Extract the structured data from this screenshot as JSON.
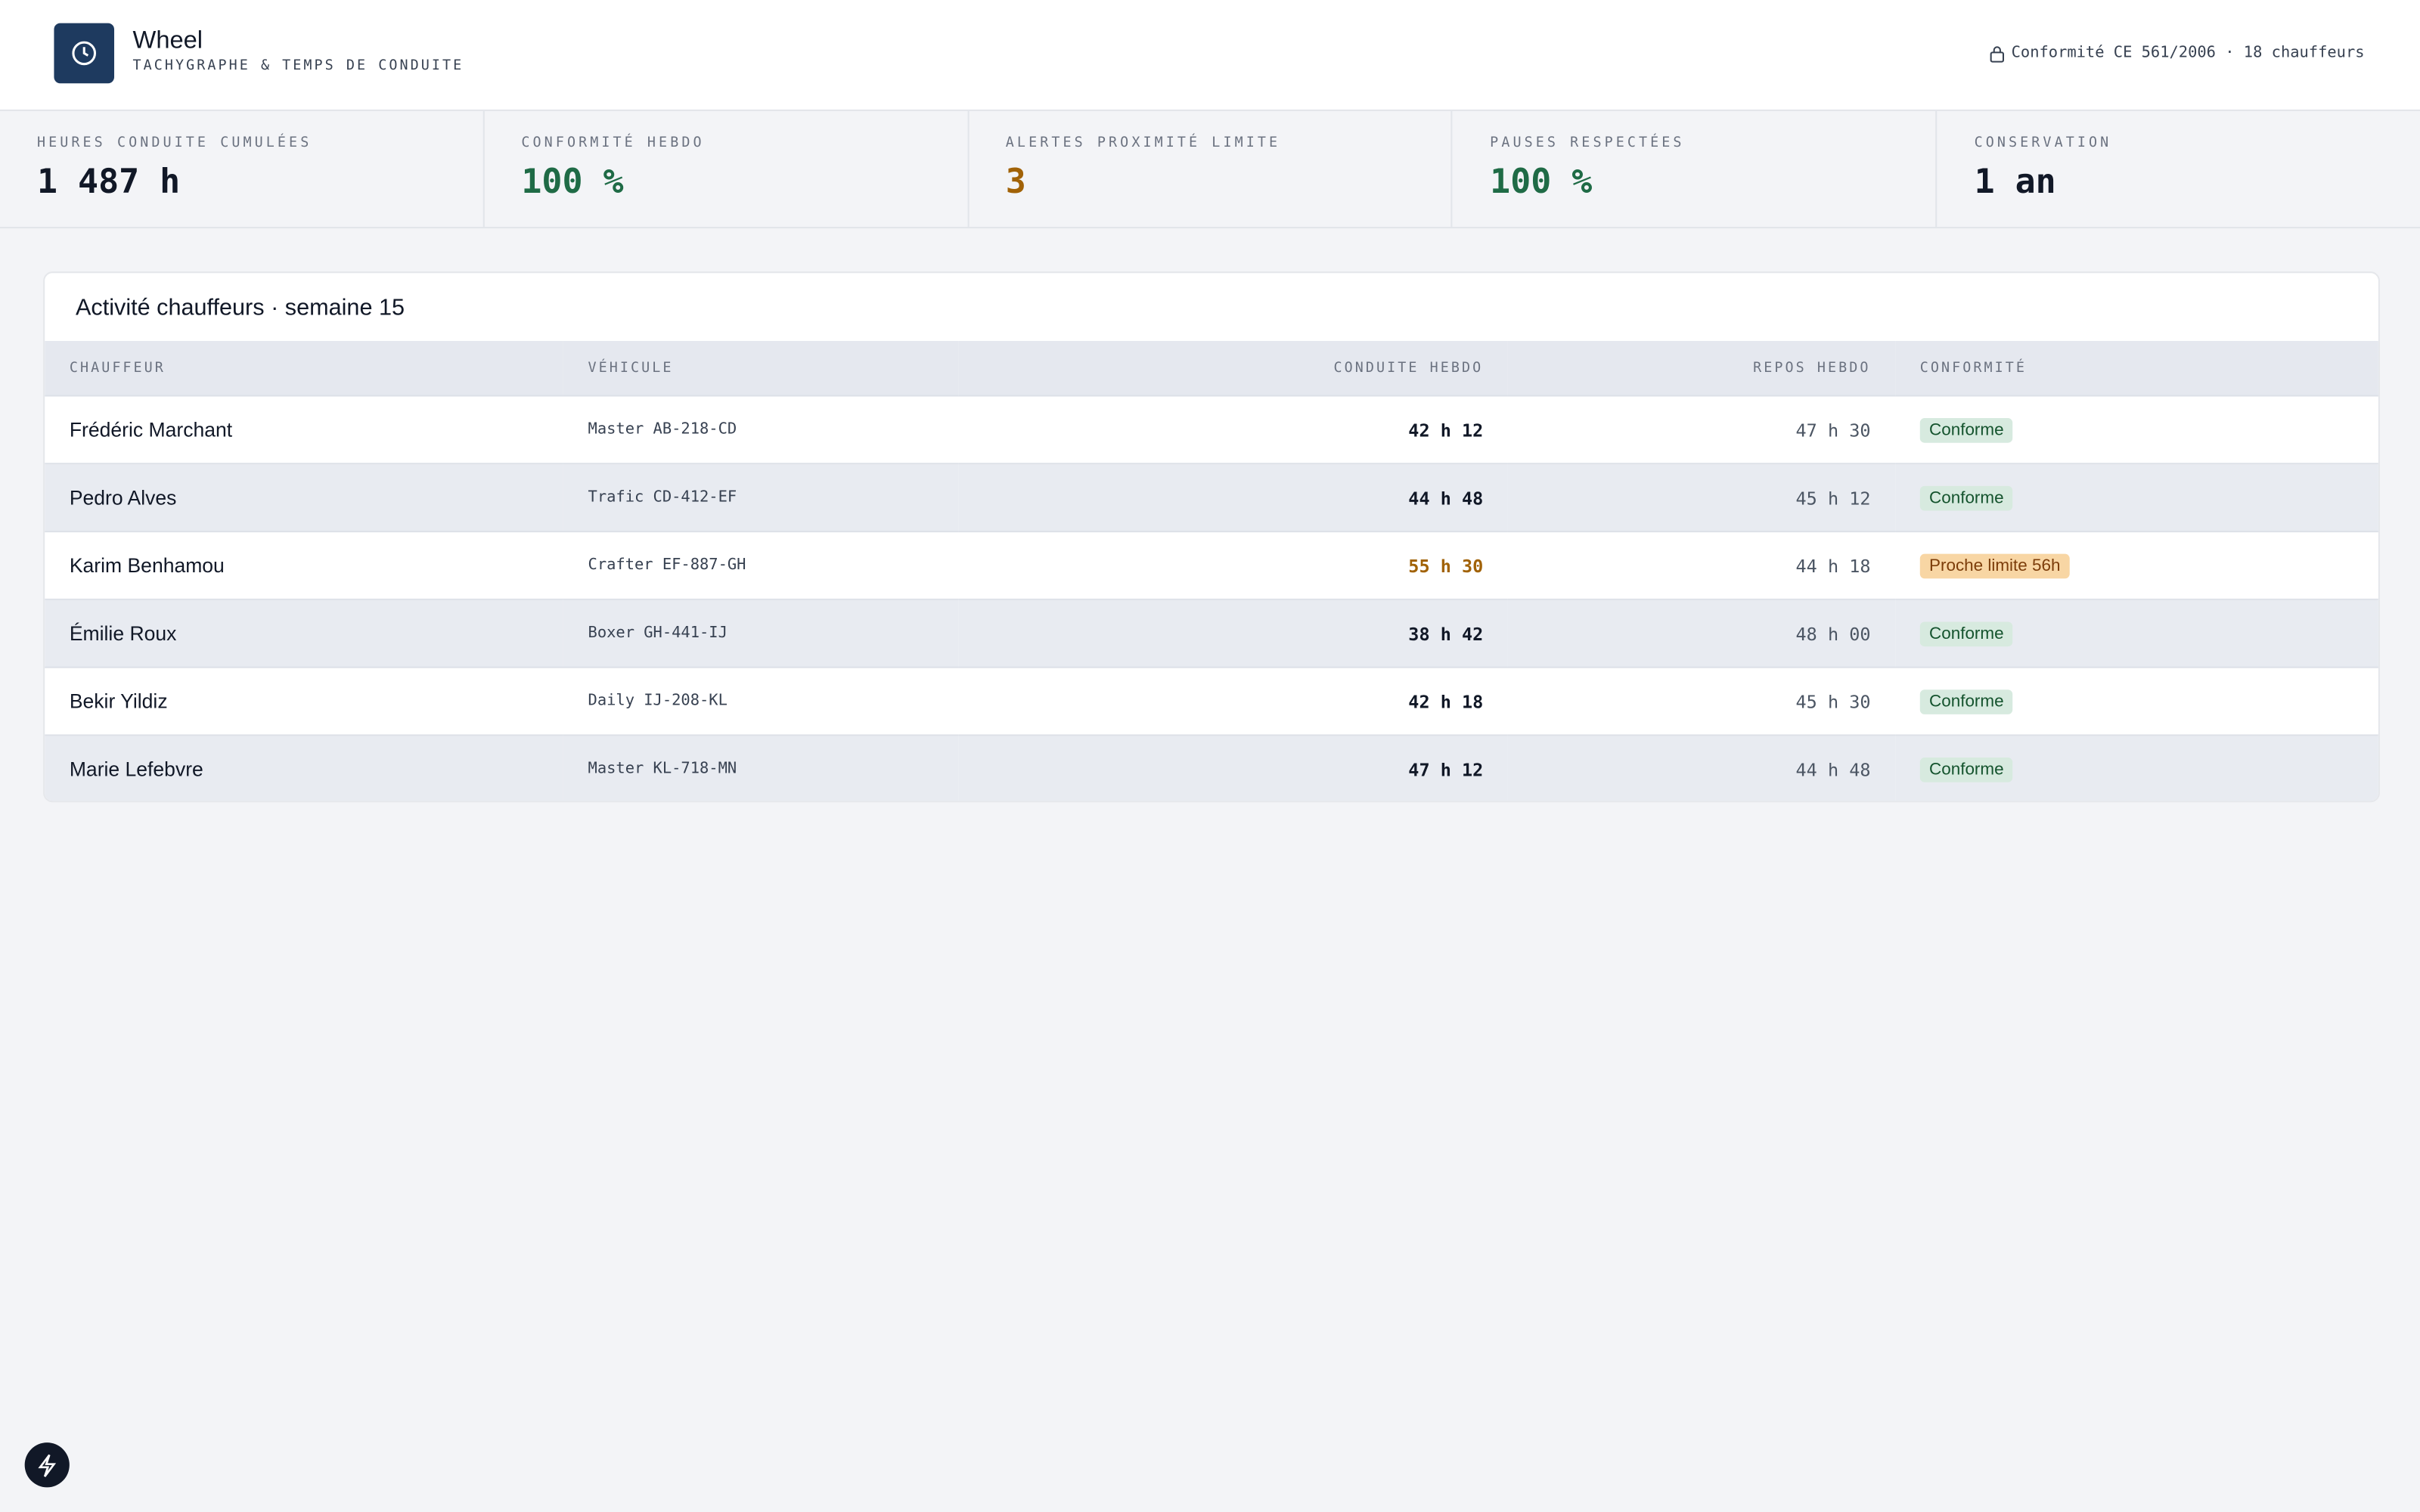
{
  "header": {
    "title": "Wheel",
    "subtitle": "TACHYGRAPHE & TEMPS DE CONDUITE",
    "status": "Conformité CE 561/2006 · 18 chauffeurs"
  },
  "kpis": [
    {
      "label": "HEURES CONDUITE CUMULÉES",
      "value": "1 487 h"
    },
    {
      "label": "CONFORMITÉ HEBDO",
      "value": "100 %"
    },
    {
      "label": "ALERTES PROXIMITÉ LIMITE",
      "value": "3"
    },
    {
      "label": "PAUSES RESPECTÉES",
      "value": "100 %"
    },
    {
      "label": "CONSERVATION",
      "value": "1 an"
    }
  ],
  "table": {
    "title": "Activité chauffeurs · semaine 15",
    "columns": [
      "CHAUFFEUR",
      "VÉHICULE",
      "CONDUITE HEBDO",
      "REPOS HEBDO",
      "CONFORMITÉ"
    ],
    "rows": [
      [
        "Frédéric Marchant",
        "Master AB-218-CD",
        "42 h 12",
        "47 h 30",
        "Conforme"
      ],
      [
        "Pedro Alves",
        "Trafic CD-412-EF",
        "44 h 48",
        "45 h 12",
        "Conforme"
      ],
      [
        "Karim Benhamou",
        "Crafter EF-887-GH",
        "55 h 30",
        "44 h 18",
        "Proche limite 56h"
      ],
      [
        "Émilie Roux",
        "Boxer GH-441-IJ",
        "38 h 42",
        "48 h 00",
        "Conforme"
      ],
      [
        "Bekir Yildiz",
        "Daily IJ-208-KL",
        "42 h 18",
        "45 h 30",
        "Conforme"
      ],
      [
        "Marie Lefebvre",
        "Master KL-718-MN",
        "47 h 12",
        "44 h 48",
        "Conforme"
      ]
    ]
  }
}
